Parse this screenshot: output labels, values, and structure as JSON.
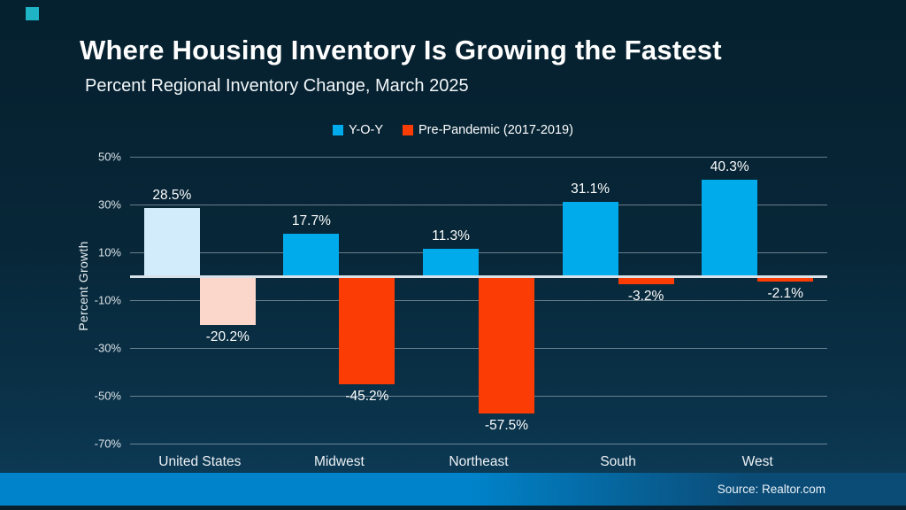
{
  "slide": {
    "accent_color": "#1FB3C6",
    "footer_color_left": "#0083CA",
    "footer_color_right": "#0B4C77",
    "background_top": "#05202E",
    "background_bottom": "#0E3D5B"
  },
  "chart_data": {
    "type": "bar",
    "title": "Where Housing Inventory Is Growing the Fastest",
    "subtitle": "Percent Regional Inventory Change, March 2025",
    "ylabel": "Percent Growth",
    "xlabel": "",
    "categories": [
      "United States",
      "Midwest",
      "Northeast",
      "South",
      "West"
    ],
    "series": [
      {
        "name": "Y-O-Y",
        "color": "#00ABEC",
        "muted_color": "#D3ECFB",
        "values": [
          28.5,
          17.7,
          11.3,
          31.1,
          40.3
        ]
      },
      {
        "name": "Pre-Pandemic (2017-2019)",
        "color": "#FB3D05",
        "muted_color": "#FBD7CB",
        "values": [
          -20.2,
          -45.2,
          -57.5,
          -3.2,
          -2.1
        ]
      }
    ],
    "value_labels": [
      [
        "28.5%",
        "17.7%",
        "11.3%",
        "31.1%",
        "40.3%"
      ],
      [
        "-20.2%",
        "-45.2%",
        "-57.5%",
        "-3.2%",
        "-2.1%"
      ]
    ],
    "muted_category": "United States",
    "yticks": [
      50,
      30,
      10,
      -10,
      -30,
      -50,
      -70
    ],
    "ytick_labels": [
      "50%",
      "30%",
      "10%",
      "-10%",
      "-30%",
      "-50%",
      "-70%"
    ],
    "ylim": [
      -70,
      50
    ],
    "grid": true,
    "legend_position": "top",
    "source": "Source: Realtor.com"
  }
}
